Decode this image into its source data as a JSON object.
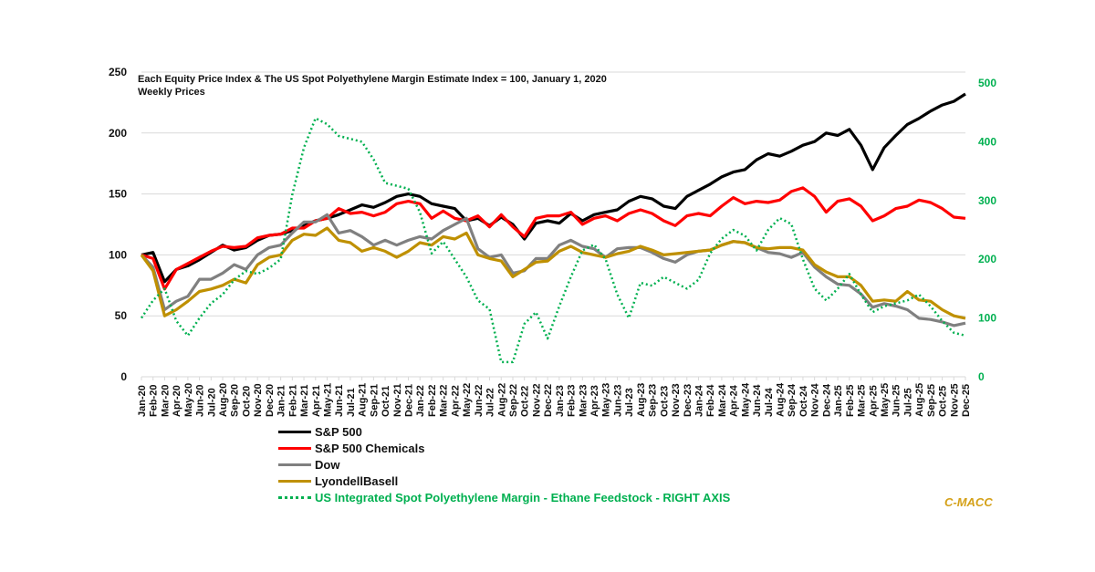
{
  "chart_data": {
    "type": "line",
    "title": "Each Equity Price Index & The US Spot Polyethylene Margin Estimate Index = 100, January 1, 2020",
    "subtitle": "Weekly Prices",
    "brand": "C-MACC",
    "left_axis": {
      "range": [
        0,
        250
      ],
      "ticks": [
        "0",
        "50",
        "100",
        "150",
        "200",
        "250"
      ]
    },
    "right_axis": {
      "range": [
        0,
        500
      ],
      "ticks": [
        "0",
        "100",
        "200",
        "300",
        "400",
        "500"
      ],
      "color": "#00b050"
    },
    "grid": true,
    "legend_position": "bottom",
    "x": [
      "Jan-20",
      "Feb-20",
      "Mar-20",
      "Apr-20",
      "May-20",
      "Jun-20",
      "Jul-20",
      "Aug-20",
      "Sep-20",
      "Oct-20",
      "Nov-20",
      "Dec-20",
      "Jan-21",
      "Feb-21",
      "Mar-21",
      "Apr-21",
      "May-21",
      "Jun-21",
      "Jul-21",
      "Aug-21",
      "Sep-21",
      "Oct-21",
      "Nov-21",
      "Dec-21",
      "Jan-22",
      "Feb-22",
      "Mar-22",
      "Apr-22",
      "May-22",
      "Jun-22",
      "Jul-22",
      "Aug-22",
      "Sep-22",
      "Oct-22",
      "Nov-22",
      "Dec-22",
      "Jan-23",
      "Feb-23",
      "Mar-23",
      "Apr-23",
      "May-23",
      "Jun-23",
      "Jul-23",
      "Aug-23",
      "Sep-23",
      "Oct-23",
      "Nov-23",
      "Dec-23",
      "Jan-24",
      "Feb-24",
      "Mar-24",
      "Apr-24",
      "May-24",
      "Jun-24",
      "Jul-24",
      "Aug-24",
      "Sep-24",
      "Oct-24",
      "Nov-24",
      "Dec-24",
      "Jan-25",
      "Feb-25",
      "Mar-25",
      "Apr-25",
      "May-25",
      "Jun-25",
      "Jul-25",
      "Aug-25",
      "Sep-25",
      "Oct-25",
      "Nov-25",
      "Dec-25"
    ],
    "series": [
      {
        "name": "S&P 500",
        "color": "#000000",
        "axis": "left",
        "dash": false,
        "values": [
          100,
          102,
          78,
          88,
          91,
          96,
          102,
          108,
          104,
          106,
          112,
          116,
          117,
          120,
          124,
          128,
          130,
          133,
          137,
          141,
          139,
          143,
          148,
          150,
          148,
          142,
          140,
          138,
          128,
          130,
          124,
          131,
          125,
          113,
          126,
          128,
          126,
          134,
          128,
          133,
          135,
          137,
          144,
          148,
          146,
          140,
          138,
          148,
          153,
          158,
          164,
          168,
          170,
          178,
          183,
          181,
          185,
          190,
          193,
          200,
          198,
          203,
          190,
          170,
          188,
          198,
          207,
          212,
          218,
          223,
          226,
          232
        ]
      },
      {
        "name": "S&P 500 Chemicals",
        "color": "#ff0000",
        "axis": "left",
        "dash": false,
        "values": [
          100,
          97,
          72,
          88,
          93,
          98,
          103,
          107,
          106,
          107,
          114,
          116,
          117,
          122,
          122,
          128,
          130,
          138,
          134,
          135,
          132,
          135,
          142,
          144,
          142,
          130,
          136,
          130,
          128,
          132,
          123,
          133,
          123,
          115,
          130,
          132,
          132,
          135,
          125,
          130,
          132,
          128,
          134,
          137,
          134,
          128,
          124,
          132,
          134,
          132,
          140,
          147,
          142,
          144,
          143,
          145,
          152,
          155,
          148,
          135,
          144,
          146,
          140,
          128,
          132,
          138,
          140,
          145,
          143,
          138,
          131,
          130
        ]
      },
      {
        "name": "Dow",
        "color": "#808080",
        "axis": "left",
        "dash": false,
        "values": [
          100,
          90,
          55,
          62,
          66,
          80,
          80,
          85,
          92,
          88,
          100,
          106,
          108,
          118,
          127,
          127,
          133,
          118,
          120,
          115,
          108,
          112,
          108,
          112,
          115,
          113,
          120,
          125,
          130,
          105,
          98,
          100,
          85,
          87,
          97,
          97,
          108,
          112,
          107,
          105,
          98,
          105,
          106,
          106,
          102,
          97,
          94,
          100,
          103,
          104,
          108,
          111,
          110,
          106,
          102,
          101,
          98,
          102,
          90,
          82,
          76,
          75,
          68,
          57,
          60,
          58,
          55,
          48,
          47,
          45,
          42,
          44
        ]
      },
      {
        "name": "LyondellBasell",
        "color": "#bf9000",
        "axis": "left",
        "dash": false,
        "values": [
          100,
          87,
          50,
          55,
          62,
          70,
          72,
          75,
          80,
          77,
          92,
          98,
          100,
          112,
          117,
          116,
          122,
          112,
          110,
          103,
          106,
          103,
          98,
          103,
          110,
          108,
          115,
          113,
          118,
          100,
          97,
          95,
          82,
          88,
          94,
          95,
          103,
          107,
          102,
          100,
          98,
          101,
          103,
          107,
          104,
          100,
          101,
          102,
          103,
          104,
          108,
          111,
          110,
          106,
          105,
          106,
          106,
          104,
          92,
          86,
          82,
          82,
          75,
          62,
          63,
          62,
          70,
          63,
          62,
          55,
          50,
          48
        ]
      },
      {
        "name": "US Integrated Spot Polyethylene Margin - Ethane Feedstock - RIGHT AXIS",
        "color": "#00b050",
        "axis": "right",
        "dash": true,
        "values": [
          100,
          130,
          150,
          95,
          70,
          100,
          125,
          140,
          165,
          180,
          175,
          185,
          200,
          310,
          390,
          440,
          430,
          410,
          405,
          400,
          370,
          330,
          325,
          320,
          280,
          210,
          230,
          200,
          170,
          130,
          115,
          25,
          25,
          90,
          110,
          65,
          120,
          170,
          215,
          225,
          200,
          140,
          100,
          160,
          155,
          170,
          160,
          150,
          165,
          210,
          235,
          250,
          240,
          215,
          250,
          270,
          260,
          200,
          150,
          130,
          150,
          175,
          140,
          110,
          120,
          125,
          130,
          140,
          120,
          95,
          75,
          70
        ]
      }
    ]
  }
}
